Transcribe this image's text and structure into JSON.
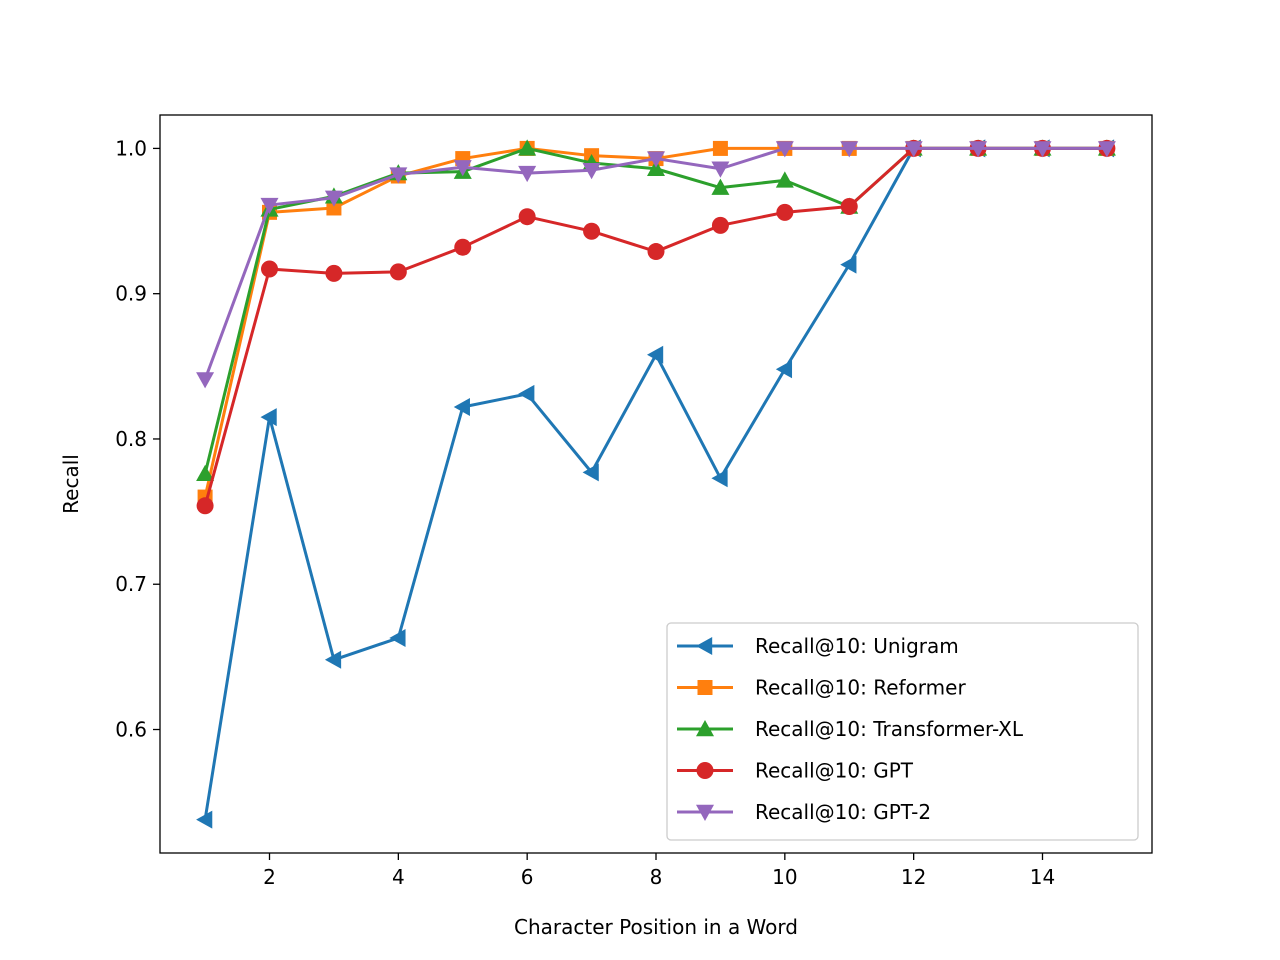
{
  "chart_data": {
    "type": "line",
    "title": "",
    "xlabel": "Character Position in a Word",
    "ylabel": "Recall",
    "xlim": [
      0.3,
      15.7
    ],
    "ylim": [
      0.515,
      1.023
    ],
    "xticks": [
      2,
      4,
      6,
      8,
      10,
      12,
      14
    ],
    "xtick_labels": [
      "2",
      "4",
      "6",
      "8",
      "10",
      "12",
      "14"
    ],
    "yticks": [
      0.6,
      0.7,
      0.8,
      0.9,
      1.0
    ],
    "ytick_labels": [
      "0.6",
      "0.7",
      "0.8",
      "0.9",
      "1.0"
    ],
    "grid": false,
    "legend_position": "lower-right",
    "x": [
      1,
      2,
      3,
      4,
      5,
      6,
      7,
      8,
      9,
      10,
      11,
      12,
      13,
      14,
      15
    ],
    "series": [
      {
        "name": "Recall@10: Unigram",
        "color": "#1f77b4",
        "marker": "triangle-left",
        "values": [
          0.538,
          0.815,
          0.648,
          0.663,
          0.822,
          0.831,
          0.777,
          0.858,
          0.773,
          0.848,
          0.92,
          1.0,
          1.0,
          1.0,
          1.0
        ]
      },
      {
        "name": "Recall@10: Reformer",
        "color": "#ff7f0e",
        "marker": "square",
        "values": [
          0.76,
          0.956,
          0.959,
          0.981,
          0.993,
          1.0,
          0.995,
          0.993,
          1.0,
          1.0,
          1.0,
          1.0,
          1.0,
          1.0,
          1.0
        ]
      },
      {
        "name": "Recall@10: Transformer-XL",
        "color": "#2ca02c",
        "marker": "triangle-up",
        "values": [
          0.776,
          0.958,
          0.967,
          0.983,
          0.984,
          1.0,
          0.99,
          0.986,
          0.973,
          0.978,
          0.96,
          1.0,
          1.0,
          1.0,
          1.0
        ]
      },
      {
        "name": "Recall@10: GPT",
        "color": "#d62728",
        "marker": "circle",
        "values": [
          0.754,
          0.917,
          0.914,
          0.915,
          0.932,
          0.953,
          0.943,
          0.929,
          0.947,
          0.956,
          0.96,
          1.0,
          1.0,
          1.0,
          1.0
        ]
      },
      {
        "name": "Recall@10: GPT-2",
        "color": "#9467bd",
        "marker": "triangle-down",
        "values": [
          0.841,
          0.961,
          0.966,
          0.982,
          0.987,
          0.983,
          0.985,
          0.993,
          0.986,
          1.0,
          1.0,
          1.0,
          1.0,
          1.0,
          1.0
        ]
      }
    ]
  }
}
